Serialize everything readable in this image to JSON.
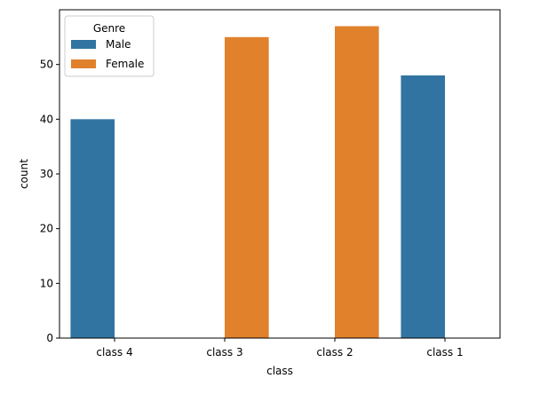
{
  "chart_data": {
    "type": "bar",
    "title": "",
    "xlabel": "class",
    "ylabel": "count",
    "categories": [
      "class 4",
      "class 3",
      "class 2",
      "class 1"
    ],
    "ylim": [
      0,
      60
    ],
    "yticks": [
      0,
      10,
      20,
      30,
      40,
      50
    ],
    "grid": false,
    "legend": {
      "title": "Genre",
      "placement": "top-left"
    },
    "series": [
      {
        "name": "Male",
        "color": "#3274a1",
        "values": [
          40,
          null,
          null,
          48
        ]
      },
      {
        "name": "Female",
        "color": "#e1812c",
        "values": [
          null,
          55,
          57,
          null
        ]
      }
    ]
  }
}
